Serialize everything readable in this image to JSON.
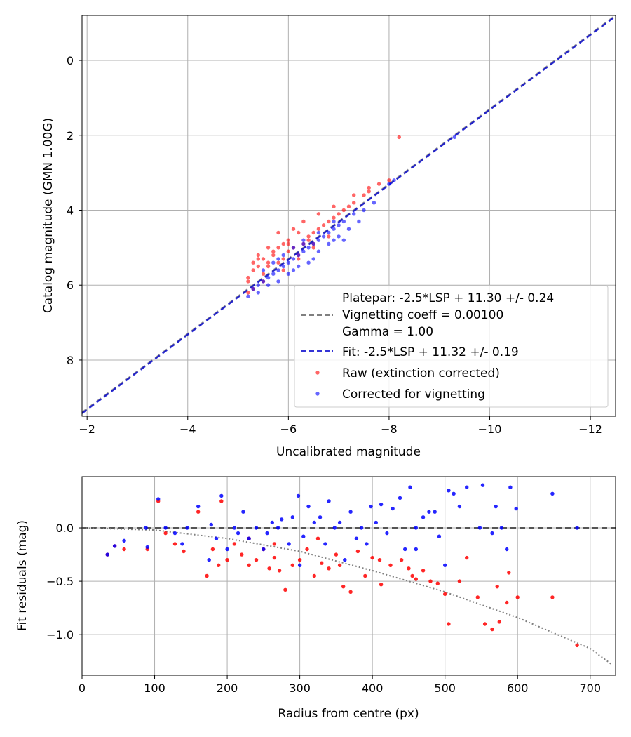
{
  "chart_data": [
    {
      "type": "scatter",
      "xlabel": "Uncalibrated magnitude",
      "ylabel": "Catalog magnitude (GMN 1.00G)",
      "xlim": [
        -1.9,
        -12.5
      ],
      "ylim": [
        9.5,
        -1.2
      ],
      "xticks": [
        -2,
        -4,
        -6,
        -8,
        -10,
        -12
      ],
      "xtick_labels": [
        "−2",
        "−4",
        "−6",
        "−8",
        "−10",
        "−12"
      ],
      "yticks": [
        0,
        2,
        4,
        6,
        8
      ],
      "ytick_labels": [
        "0",
        "2",
        "4",
        "6",
        "8"
      ],
      "grid": true,
      "legend_position": "lower-right",
      "legend": [
        "Platepar: -2.5*LSP + 11.30 +/- 0.24",
        "Vignetting coeff = 0.00100",
        "Gamma = 1.00",
        "Fit: -2.5*LSP + 11.32 +/- 0.19",
        "Raw (extinction corrected)",
        "Corrected for vignetting"
      ],
      "series": [
        {
          "name": "Platepar",
          "kind": "line",
          "color": "#808080",
          "slope": 1,
          "intercept": 11.3
        },
        {
          "name": "Fit",
          "kind": "line",
          "color": "#0000cc",
          "slope": 1,
          "intercept": 11.32
        },
        {
          "name": "Raw (extinction corrected)",
          "kind": "scatter",
          "color": "#ff0000",
          "points": [
            [
              -5.2,
              5.9
            ],
            [
              -5.2,
              5.8
            ],
            [
              -5.3,
              5.6
            ],
            [
              -5.3,
              6.1
            ],
            [
              -5.4,
              5.5
            ],
            [
              -5.5,
              5.7
            ],
            [
              -5.5,
              5.3
            ],
            [
              -5.6,
              5.5
            ],
            [
              -5.6,
              5.4
            ],
            [
              -5.7,
              5.2
            ],
            [
              -5.8,
              5.4
            ],
            [
              -5.8,
              5.0
            ],
            [
              -5.9,
              5.3
            ],
            [
              -5.9,
              4.9
            ],
            [
              -6.0,
              5.1
            ],
            [
              -6.0,
              4.8
            ],
            [
              -6.1,
              5.0
            ],
            [
              -6.2,
              4.6
            ],
            [
              -6.2,
              5.2
            ],
            [
              -6.3,
              4.9
            ],
            [
              -6.4,
              4.7
            ],
            [
              -6.5,
              4.6
            ],
            [
              -6.5,
              4.9
            ],
            [
              -6.6,
              4.5
            ],
            [
              -6.7,
              4.4
            ],
            [
              -6.8,
              4.3
            ],
            [
              -6.9,
              4.2
            ],
            [
              -7.0,
              4.1
            ],
            [
              -7.2,
              3.9
            ],
            [
              -7.3,
              3.8
            ],
            [
              -7.5,
              3.6
            ],
            [
              -7.6,
              3.5
            ],
            [
              -7.8,
              3.3
            ],
            [
              -8.2,
              2.05
            ],
            [
              -5.4,
              5.2
            ],
            [
              -5.6,
              5.0
            ],
            [
              -5.8,
              4.6
            ],
            [
              -6.1,
              4.5
            ],
            [
              -6.3,
              4.3
            ],
            [
              -6.6,
              4.1
            ],
            [
              -6.9,
              3.9
            ],
            [
              -7.3,
              3.6
            ],
            [
              -7.6,
              3.4
            ],
            [
              -8.0,
              3.2
            ],
            [
              -5.3,
              5.4
            ],
            [
              -5.7,
              5.1
            ],
            [
              -6.0,
              4.9
            ],
            [
              -6.4,
              4.8
            ],
            [
              -7.1,
              4.0
            ],
            [
              -5.5,
              5.9
            ],
            [
              -5.9,
              5.6
            ],
            [
              -6.2,
              5.3
            ],
            [
              -6.5,
              5.0
            ],
            [
              -6.8,
              4.7
            ],
            [
              -5.2,
              6.2
            ],
            [
              -5.4,
              5.3
            ]
          ]
        },
        {
          "name": "Corrected for vignetting",
          "kind": "scatter",
          "color": "#0000ff",
          "points": [
            [
              -5.3,
              6.1
            ],
            [
              -5.4,
              6.0
            ],
            [
              -5.5,
              5.9
            ],
            [
              -5.6,
              5.8
            ],
            [
              -5.7,
              5.7
            ],
            [
              -5.8,
              5.6
            ],
            [
              -5.9,
              5.5
            ],
            [
              -6.0,
              5.4
            ],
            [
              -6.1,
              5.3
            ],
            [
              -6.2,
              5.2
            ],
            [
              -6.3,
              5.1
            ],
            [
              -6.4,
              5.0
            ],
            [
              -6.5,
              4.9
            ],
            [
              -6.6,
              4.8
            ],
            [
              -6.7,
              4.7
            ],
            [
              -6.8,
              4.6
            ],
            [
              -6.9,
              4.5
            ],
            [
              -7.0,
              4.4
            ],
            [
              -7.1,
              4.3
            ],
            [
              -7.3,
              4.1
            ],
            [
              -7.5,
              4.0
            ],
            [
              -7.7,
              3.8
            ],
            [
              -8.0,
              3.3
            ],
            [
              -8.1,
              3.2
            ],
            [
              -9.3,
              2.05
            ],
            [
              -5.5,
              5.6
            ],
            [
              -5.7,
              5.4
            ],
            [
              -5.9,
              5.2
            ],
            [
              -6.1,
              5.0
            ],
            [
              -6.3,
              4.8
            ],
            [
              -6.6,
              4.6
            ],
            [
              -6.9,
              4.3
            ],
            [
              -5.4,
              6.2
            ],
            [
              -5.6,
              6.0
            ],
            [
              -5.8,
              5.9
            ],
            [
              -6.0,
              5.7
            ],
            [
              -6.2,
              5.5
            ],
            [
              -6.4,
              5.4
            ],
            [
              -6.6,
              5.1
            ],
            [
              -6.8,
              4.9
            ],
            [
              -7.0,
              4.7
            ],
            [
              -7.2,
              4.5
            ],
            [
              -7.4,
              4.3
            ],
            [
              -5.2,
              6.3
            ],
            [
              -6.1,
              5.6
            ],
            [
              -6.5,
              5.3
            ],
            [
              -7.1,
              4.8
            ],
            [
              -5.8,
              5.3
            ],
            [
              -6.3,
              4.9
            ],
            [
              -6.9,
              4.8
            ]
          ]
        }
      ]
    },
    {
      "type": "scatter",
      "xlabel": "Radius from centre (px)",
      "ylabel": "Fit residuals (mag)",
      "xlim": [
        0,
        735
      ],
      "ylim": [
        -1.38,
        0.48
      ],
      "xticks": [
        0,
        100,
        200,
        300,
        400,
        500,
        600,
        700
      ],
      "xtick_labels": [
        "0",
        "100",
        "200",
        "300",
        "400",
        "500",
        "600",
        "700"
      ],
      "yticks": [
        0.0,
        -0.5,
        -1.0
      ],
      "ytick_labels": [
        "0.0",
        "−0.5",
        "−1.0"
      ],
      "grid": true,
      "series": [
        {
          "name": "zero",
          "kind": "hline",
          "color": "#555555",
          "y": 0
        },
        {
          "name": "vignetting",
          "kind": "dotted-line",
          "color": "#808080",
          "points": [
            [
              0,
              0
            ],
            [
              100,
              -0.02
            ],
            [
              200,
              -0.1
            ],
            [
              300,
              -0.22
            ],
            [
              400,
              -0.4
            ],
            [
              500,
              -0.6
            ],
            [
              600,
              -0.84
            ],
            [
              700,
              -1.13
            ],
            [
              730,
              -1.28
            ]
          ]
        },
        {
          "name": "Raw",
          "kind": "scatter",
          "color": "#ff0000",
          "points": [
            [
              35,
              -0.25
            ],
            [
              45,
              -0.17
            ],
            [
              58,
              -0.2
            ],
            [
              90,
              -0.2
            ],
            [
              105,
              0.25
            ],
            [
              115,
              -0.05
            ],
            [
              128,
              -0.15
            ],
            [
              140,
              -0.22
            ],
            [
              160,
              0.15
            ],
            [
              172,
              -0.45
            ],
            [
              180,
              -0.2
            ],
            [
              188,
              -0.35
            ],
            [
              192,
              0.25
            ],
            [
              200,
              -0.3
            ],
            [
              210,
              -0.15
            ],
            [
              220,
              -0.25
            ],
            [
              230,
              -0.1
            ],
            [
              240,
              -0.3
            ],
            [
              250,
              -0.2
            ],
            [
              258,
              -0.38
            ],
            [
              265,
              -0.28
            ],
            [
              272,
              -0.4
            ],
            [
              280,
              -0.58
            ],
            [
              290,
              -0.35
            ],
            [
              300,
              -0.3
            ],
            [
              310,
              -0.2
            ],
            [
              320,
              -0.45
            ],
            [
              330,
              -0.33
            ],
            [
              340,
              -0.38
            ],
            [
              350,
              -0.25
            ],
            [
              360,
              -0.55
            ],
            [
              370,
              -0.6
            ],
            [
              380,
              -0.22
            ],
            [
              390,
              -0.45
            ],
            [
              400,
              -0.28
            ],
            [
              410,
              -0.3
            ],
            [
              412,
              -0.53
            ],
            [
              425,
              -0.35
            ],
            [
              440,
              -0.3
            ],
            [
              450,
              -0.38
            ],
            [
              460,
              -0.48
            ],
            [
              470,
              -0.4
            ],
            [
              480,
              -0.5
            ],
            [
              490,
              -0.52
            ],
            [
              500,
              -0.62
            ],
            [
              505,
              -0.9
            ],
            [
              520,
              -0.5
            ],
            [
              530,
              -0.28
            ],
            [
              545,
              -0.65
            ],
            [
              555,
              -0.9
            ],
            [
              565,
              -0.95
            ],
            [
              572,
              -0.55
            ],
            [
              575,
              -0.88
            ],
            [
              585,
              -0.7
            ],
            [
              588,
              -0.42
            ],
            [
              600,
              -0.65
            ],
            [
              648,
              -0.65
            ],
            [
              682,
              -1.1
            ],
            [
              230,
              -0.35
            ],
            [
              265,
              -0.15
            ],
            [
              325,
              -0.1
            ],
            [
              355,
              -0.35
            ],
            [
              455,
              -0.45
            ]
          ]
        },
        {
          "name": "Corrected",
          "kind": "scatter",
          "color": "#0000ff",
          "points": [
            [
              35,
              -0.25
            ],
            [
              45,
              -0.17
            ],
            [
              58,
              -0.12
            ],
            [
              88,
              0.0
            ],
            [
              90,
              -0.18
            ],
            [
              105,
              0.27
            ],
            [
              115,
              0.0
            ],
            [
              128,
              -0.05
            ],
            [
              138,
              -0.15
            ],
            [
              145,
              0.0
            ],
            [
              160,
              0.2
            ],
            [
              175,
              -0.3
            ],
            [
              178,
              0.03
            ],
            [
              185,
              -0.1
            ],
            [
              192,
              0.3
            ],
            [
              200,
              -0.2
            ],
            [
              210,
              0.0
            ],
            [
              215,
              -0.05
            ],
            [
              222,
              0.15
            ],
            [
              230,
              -0.1
            ],
            [
              240,
              0.0
            ],
            [
              250,
              -0.2
            ],
            [
              255,
              -0.05
            ],
            [
              262,
              0.05
            ],
            [
              270,
              0.0
            ],
            [
              275,
              0.08
            ],
            [
              285,
              -0.15
            ],
            [
              290,
              0.1
            ],
            [
              298,
              0.3
            ],
            [
              305,
              -0.08
            ],
            [
              312,
              0.2
            ],
            [
              320,
              0.05
            ],
            [
              328,
              0.1
            ],
            [
              335,
              -0.15
            ],
            [
              340,
              0.25
            ],
            [
              348,
              0.0
            ],
            [
              355,
              0.05
            ],
            [
              362,
              -0.3
            ],
            [
              370,
              0.15
            ],
            [
              378,
              -0.1
            ],
            [
              385,
              0.0
            ],
            [
              392,
              -0.15
            ],
            [
              398,
              0.2
            ],
            [
              405,
              0.05
            ],
            [
              412,
              0.22
            ],
            [
              420,
              -0.05
            ],
            [
              428,
              0.18
            ],
            [
              438,
              0.28
            ],
            [
              445,
              -0.2
            ],
            [
              452,
              0.38
            ],
            [
              460,
              0.0
            ],
            [
              470,
              0.1
            ],
            [
              478,
              0.15
            ],
            [
              486,
              0.15
            ],
            [
              492,
              -0.08
            ],
            [
              500,
              -0.35
            ],
            [
              505,
              0.35
            ],
            [
              512,
              0.32
            ],
            [
              520,
              0.2
            ],
            [
              530,
              0.38
            ],
            [
              548,
              0.0
            ],
            [
              552,
              0.4
            ],
            [
              565,
              -0.05
            ],
            [
              570,
              0.2
            ],
            [
              578,
              0.0
            ],
            [
              585,
              -0.2
            ],
            [
              590,
              0.38
            ],
            [
              598,
              0.18
            ],
            [
              648,
              0.32
            ],
            [
              682,
              0.0
            ],
            [
              300,
              -0.35
            ],
            [
              460,
              -0.2
            ]
          ]
        }
      ]
    }
  ]
}
